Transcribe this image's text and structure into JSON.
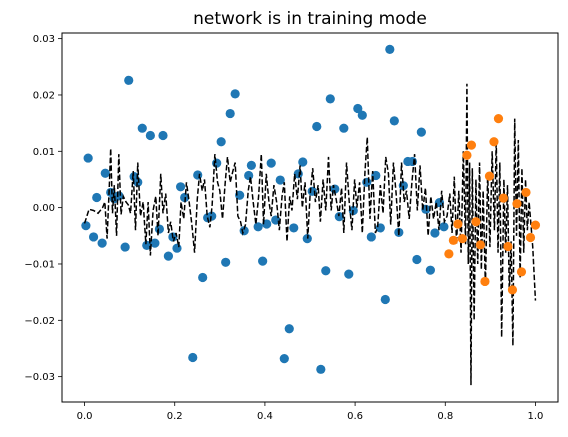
{
  "chart_data": {
    "type": "scatter",
    "title": "network is in training mode",
    "xlabel": "",
    "ylabel": "",
    "xlim": [
      -0.05,
      1.05
    ],
    "ylim": [
      -0.0345,
      0.031
    ],
    "xticks": [
      0.0,
      0.2,
      0.4,
      0.6,
      0.8,
      1.0
    ],
    "xtick_labels": [
      "0.0",
      "0.2",
      "0.4",
      "0.6",
      "0.8",
      "1.0"
    ],
    "yticks": [
      -0.03,
      -0.02,
      -0.01,
      0.0,
      0.01,
      0.02,
      0.03
    ],
    "ytick_labels": [
      "−0.03",
      "−0.02",
      "−0.01",
      "0.00",
      "0.01",
      "0.02",
      "0.03"
    ],
    "grid": false,
    "legend": "none",
    "series": [
      {
        "kind": "scatter",
        "color": "#1f77b4",
        "points": [
          [
            0.003,
            -0.0032
          ],
          [
            0.008,
            0.0088
          ],
          [
            0.02,
            -0.0052
          ],
          [
            0.027,
            0.0018
          ],
          [
            0.039,
            -0.0063
          ],
          [
            0.046,
            0.0061
          ],
          [
            0.058,
            0.0027
          ],
          [
            0.066,
            0.0016
          ],
          [
            0.076,
            0.0021
          ],
          [
            0.09,
            -0.007
          ],
          [
            0.098,
            0.0226
          ],
          [
            0.11,
            0.0055
          ],
          [
            0.118,
            0.0045
          ],
          [
            0.128,
            0.0141
          ],
          [
            0.138,
            -0.0067
          ],
          [
            0.146,
            0.0128
          ],
          [
            0.156,
            -0.0063
          ],
          [
            0.166,
            -0.0038
          ],
          [
            0.174,
            0.0128
          ],
          [
            0.186,
            -0.0086
          ],
          [
            0.196,
            -0.0052
          ],
          [
            0.205,
            -0.0072
          ],
          [
            0.213,
            0.0037
          ],
          [
            0.222,
            0.0018
          ],
          [
            0.24,
            -0.0266
          ],
          [
            0.251,
            0.0058
          ],
          [
            0.262,
            -0.0124
          ],
          [
            0.273,
            -0.0018
          ],
          [
            0.282,
            -0.0015
          ],
          [
            0.293,
            0.0079
          ],
          [
            0.303,
            0.0117
          ],
          [
            0.313,
            -0.0097
          ],
          [
            0.323,
            0.0167
          ],
          [
            0.334,
            0.0202
          ],
          [
            0.344,
            0.0022
          ],
          [
            0.354,
            -0.0041
          ],
          [
            0.364,
            0.0057
          ],
          [
            0.37,
            0.0075
          ],
          [
            0.385,
            -0.0034
          ],
          [
            0.395,
            -0.0095
          ],
          [
            0.404,
            -0.0029
          ],
          [
            0.414,
            0.0079
          ],
          [
            0.424,
            -0.0022
          ],
          [
            0.434,
            0.0049
          ],
          [
            0.443,
            -0.0268
          ],
          [
            0.454,
            -0.0215
          ],
          [
            0.464,
            -0.0036
          ],
          [
            0.474,
            0.006
          ],
          [
            0.484,
            0.0081
          ],
          [
            0.494,
            -0.0055
          ],
          [
            0.505,
            0.0029
          ],
          [
            0.515,
            0.0144
          ],
          [
            0.524,
            -0.0287
          ],
          [
            0.535,
            -0.0112
          ],
          [
            0.545,
            0.0193
          ],
          [
            0.555,
            0.0033
          ],
          [
            0.565,
            -0.0016
          ],
          [
            0.575,
            0.0141
          ],
          [
            0.586,
            -0.0118
          ],
          [
            0.596,
            -0.0005
          ],
          [
            0.606,
            0.0176
          ],
          [
            0.616,
            0.0164
          ],
          [
            0.626,
            0.0045
          ],
          [
            0.636,
            -0.0052
          ],
          [
            0.646,
            0.0057
          ],
          [
            0.656,
            -0.0036
          ],
          [
            0.667,
            -0.0163
          ],
          [
            0.677,
            0.0281
          ],
          [
            0.687,
            0.0154
          ],
          [
            0.697,
            -0.0044
          ],
          [
            0.707,
            0.0039
          ],
          [
            0.717,
            0.0082
          ],
          [
            0.727,
            0.0082
          ],
          [
            0.737,
            -0.0092
          ],
          [
            0.747,
            0.0134
          ],
          [
            0.757,
            -0.0003
          ],
          [
            0.767,
            -0.0111
          ],
          [
            0.777,
            -0.0045
          ],
          [
            0.787,
            0.0009
          ],
          [
            0.797,
            -0.0034
          ]
        ]
      },
      {
        "kind": "scatter",
        "color": "#ff7f0e",
        "points": [
          [
            0.808,
            -0.0082
          ],
          [
            0.818,
            -0.0058
          ],
          [
            0.828,
            -0.0029
          ],
          [
            0.838,
            -0.0055
          ],
          [
            0.848,
            0.0093
          ],
          [
            0.858,
            0.0111
          ],
          [
            0.868,
            -0.0025
          ],
          [
            0.878,
            -0.0066
          ],
          [
            0.888,
            -0.0131
          ],
          [
            0.898,
            0.0056
          ],
          [
            0.908,
            0.0117
          ],
          [
            0.918,
            0.0158
          ],
          [
            0.929,
            0.0017
          ],
          [
            0.939,
            -0.0069
          ],
          [
            0.949,
            -0.0146
          ],
          [
            0.959,
            0.0007
          ],
          [
            0.969,
            -0.0114
          ],
          [
            0.979,
            0.0027
          ],
          [
            0.989,
            -0.0053
          ],
          [
            1.0,
            -0.0031
          ]
        ]
      },
      {
        "kind": "line",
        "color": "#000000",
        "style": "dashed",
        "points": [
          [
            0.0,
            -0.0028
          ],
          [
            0.01,
            -0.0003
          ],
          [
            0.02,
            -0.0005
          ],
          [
            0.03,
            -0.001
          ],
          [
            0.04,
            0.0
          ],
          [
            0.045,
            0.001
          ],
          [
            0.05,
            -0.0055
          ],
          [
            0.055,
            0.004
          ],
          [
            0.058,
            0.0105
          ],
          [
            0.062,
            -0.001
          ],
          [
            0.066,
            0.004
          ],
          [
            0.071,
            -0.005
          ],
          [
            0.076,
            0.0095
          ],
          [
            0.081,
            -0.0012
          ],
          [
            0.086,
            0.002
          ],
          [
            0.092,
            0.001
          ],
          [
            0.097,
            0.0005
          ],
          [
            0.102,
            -0.001
          ],
          [
            0.108,
            0.0065
          ],
          [
            0.113,
            -0.004
          ],
          [
            0.118,
            0.008
          ],
          [
            0.124,
            -0.0015
          ],
          [
            0.13,
            0.001
          ],
          [
            0.136,
            -0.0065
          ],
          [
            0.141,
            0.001
          ],
          [
            0.146,
            -0.0085
          ],
          [
            0.152,
            -0.0005
          ],
          [
            0.158,
            0.002
          ],
          [
            0.163,
            -0.005
          ],
          [
            0.169,
            0.006
          ],
          [
            0.174,
            -0.001
          ],
          [
            0.18,
            0.0025
          ],
          [
            0.186,
            -0.0045
          ],
          [
            0.191,
            -0.0025
          ],
          [
            0.197,
            -0.006
          ],
          [
            0.203,
            -0.0045
          ],
          [
            0.209,
            -0.007
          ],
          [
            0.214,
            0.001
          ],
          [
            0.22,
            -0.002
          ],
          [
            0.226,
            0.0045
          ],
          [
            0.232,
            0.001
          ],
          [
            0.238,
            -0.003
          ],
          [
            0.244,
            -0.008
          ],
          [
            0.25,
            0.0015
          ],
          [
            0.255,
            0.006
          ],
          [
            0.261,
            0.003
          ],
          [
            0.266,
            0.005
          ],
          [
            0.272,
            -0.0015
          ],
          [
            0.278,
            -0.0035
          ],
          [
            0.283,
            0.0005
          ],
          [
            0.289,
            0.0095
          ],
          [
            0.295,
            0.0045
          ],
          [
            0.3,
            0.003
          ],
          [
            0.306,
            -0.002
          ],
          [
            0.312,
            0.0045
          ],
          [
            0.317,
            0.009
          ],
          [
            0.323,
            0.0045
          ],
          [
            0.329,
            0.0065
          ],
          [
            0.334,
            0.008
          ],
          [
            0.34,
            -0.0015
          ],
          [
            0.346,
            -0.0025
          ],
          [
            0.351,
            -0.0045
          ],
          [
            0.357,
            -0.003
          ],
          [
            0.363,
            0.003
          ],
          [
            0.368,
            0.0055
          ],
          [
            0.374,
            0.001
          ],
          [
            0.38,
            -0.003
          ],
          [
            0.386,
            0.002
          ],
          [
            0.392,
            0.0095
          ],
          [
            0.397,
            -0.003
          ],
          [
            0.403,
            0.006
          ],
          [
            0.409,
            0.001
          ],
          [
            0.414,
            -0.0015
          ],
          [
            0.42,
            0.004
          ],
          [
            0.426,
            0.001
          ],
          [
            0.432,
            -0.004
          ],
          [
            0.438,
            0.002
          ],
          [
            0.443,
            0.0045
          ],
          [
            0.449,
            -0.006
          ],
          [
            0.455,
            0.002
          ],
          [
            0.46,
            -0.0005
          ],
          [
            0.466,
            0.006
          ],
          [
            0.472,
            0.0015
          ],
          [
            0.478,
            0.0075
          ],
          [
            0.483,
            0.0
          ],
          [
            0.489,
            0.0045
          ],
          [
            0.495,
            -0.0055
          ],
          [
            0.5,
            0.002
          ],
          [
            0.506,
            0.007
          ],
          [
            0.512,
            0.001
          ],
          [
            0.518,
            0.004
          ],
          [
            0.523,
            -0.0025
          ],
          [
            0.529,
            0.005
          ],
          [
            0.535,
            -0.0005
          ],
          [
            0.541,
            0.009
          ],
          [
            0.547,
            -0.0005
          ],
          [
            0.552,
            0.004
          ],
          [
            0.558,
            0.0015
          ],
          [
            0.564,
            -0.0015
          ],
          [
            0.57,
            0.0035
          ],
          [
            0.575,
            -0.0045
          ],
          [
            0.581,
            0.008
          ],
          [
            0.587,
            0.001
          ],
          [
            0.593,
            -0.004
          ],
          [
            0.599,
            0.005
          ],
          [
            0.604,
            0.0
          ],
          [
            0.61,
            0.0045
          ],
          [
            0.616,
            -0.0045
          ],
          [
            0.622,
            0.0065
          ],
          [
            0.627,
            0.0125
          ],
          [
            0.633,
            -0.002
          ],
          [
            0.639,
            0.0065
          ],
          [
            0.645,
            -0.0045
          ],
          [
            0.65,
            -0.0035
          ],
          [
            0.656,
            0.004
          ],
          [
            0.662,
            -0.001
          ],
          [
            0.668,
            0.009
          ],
          [
            0.674,
            0.006
          ],
          [
            0.679,
            -0.003
          ],
          [
            0.685,
            0.008
          ],
          [
            0.691,
            0.0025
          ],
          [
            0.697,
            -0.005
          ],
          [
            0.703,
            0.008
          ],
          [
            0.709,
            0.001
          ],
          [
            0.714,
            0.003
          ],
          [
            0.72,
            -0.002
          ],
          [
            0.726,
            0.0045
          ],
          [
            0.732,
            0.0095
          ],
          [
            0.738,
            -0.0005
          ],
          [
            0.744,
            0.0075
          ],
          [
            0.75,
            -0.0005
          ],
          [
            0.756,
            0.0035
          ],
          [
            0.762,
            -0.005
          ],
          [
            0.768,
            0.002
          ],
          [
            0.774,
            -0.002
          ],
          [
            0.78,
            0.001
          ],
          [
            0.786,
            -0.004
          ],
          [
            0.792,
            0.003
          ],
          [
            0.798,
            -0.0025
          ],
          [
            0.804,
            -0.0015
          ],
          [
            0.81,
            0.0025
          ],
          [
            0.815,
            -0.0045
          ],
          [
            0.82,
            0.0055
          ],
          [
            0.825,
            -0.0065
          ],
          [
            0.83,
            0.003
          ],
          [
            0.835,
            -0.008
          ],
          [
            0.84,
            0.01
          ],
          [
            0.845,
            -0.0065
          ],
          [
            0.848,
            0.022
          ],
          [
            0.851,
            -0.01
          ],
          [
            0.854,
            0.008
          ],
          [
            0.857,
            -0.0315
          ],
          [
            0.86,
            0.007
          ],
          [
            0.864,
            -0.02
          ],
          [
            0.868,
            0.005
          ],
          [
            0.872,
            -0.01
          ],
          [
            0.876,
            0.008
          ],
          [
            0.88,
            -0.011
          ],
          [
            0.884,
            0.003
          ],
          [
            0.889,
            -0.014
          ],
          [
            0.894,
            0.006
          ],
          [
            0.899,
            -0.007
          ],
          [
            0.904,
            0.01
          ],
          [
            0.909,
            -0.004
          ],
          [
            0.913,
            0.012
          ],
          [
            0.917,
            -0.008
          ],
          [
            0.921,
            0.008
          ],
          [
            0.925,
            -0.023
          ],
          [
            0.93,
            0.005
          ],
          [
            0.934,
            -0.008
          ],
          [
            0.938,
            0.004
          ],
          [
            0.942,
            -0.015
          ],
          [
            0.946,
            -0.006
          ],
          [
            0.95,
            -0.0245
          ],
          [
            0.954,
            0.0158
          ],
          [
            0.958,
            -0.005
          ],
          [
            0.962,
            0.012
          ],
          [
            0.966,
            -0.0125
          ],
          [
            0.97,
            0.007
          ],
          [
            0.974,
            -0.008
          ],
          [
            0.978,
            0.005
          ],
          [
            0.982,
            -0.004
          ],
          [
            0.986,
            0.001
          ],
          [
            0.99,
            -0.003
          ],
          [
            0.994,
            -0.007
          ],
          [
            1.0,
            -0.0165
          ]
        ]
      }
    ]
  }
}
